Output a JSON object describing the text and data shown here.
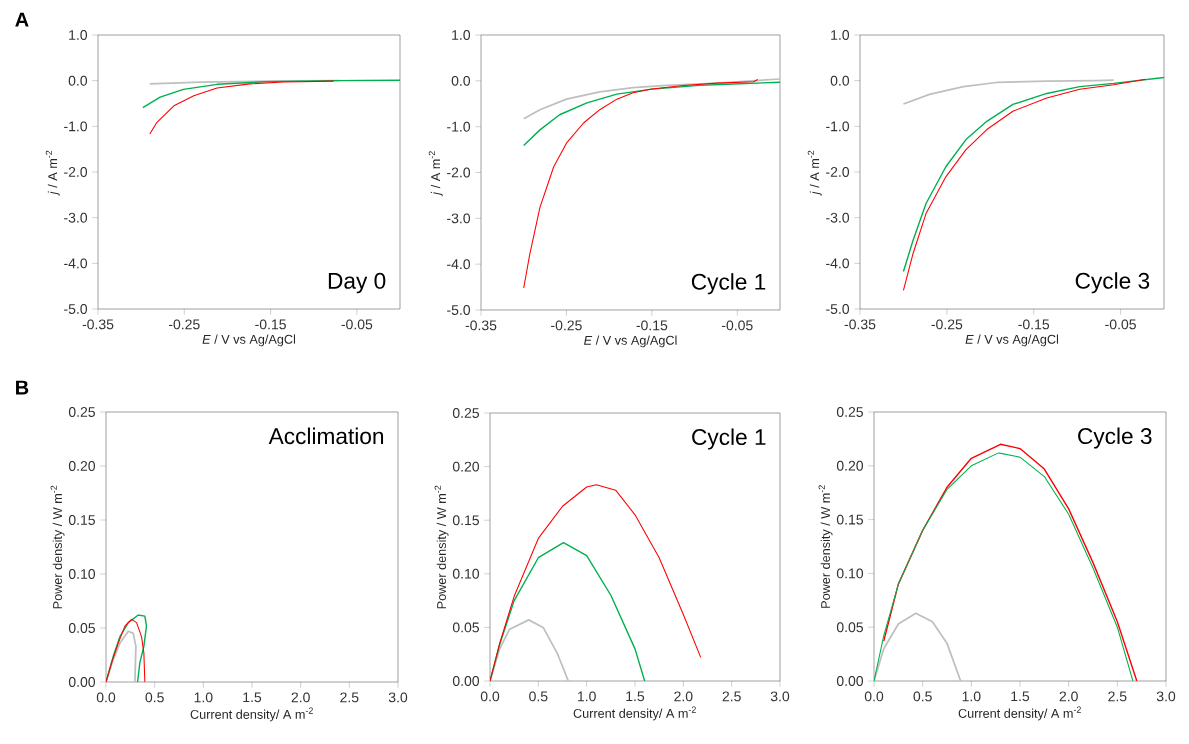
{
  "chart_data": [
    {
      "type": "line",
      "title": "Day 0",
      "annotations": [
        "A"
      ],
      "xlabel": "*E* / V vs Ag/AgCl",
      "ylabel": "*j* / A m$^{-2}$",
      "xlim": [
        -0.35,
        0
      ],
      "ylim": [
        -5,
        1
      ],
      "xticks": [
        -0.35,
        -0.25,
        -0.15,
        -0.05
      ],
      "yticks": [
        {
          "value": 1,
          "label": "1.0"
        },
        {
          "value": 0,
          "label": "0.0"
        },
        {
          "value": -1,
          "label": "-1.0"
        },
        {
          "value": -2,
          "label": "-2.0"
        },
        {
          "value": -3,
          "label": "-3.0"
        },
        {
          "value": -4,
          "label": "-4.0"
        },
        {
          "value": -5,
          "label": "-5.0"
        }
      ],
      "series": [
        {
          "color": "#bfbfbf",
          "x": [
            -0.29,
            -0.231,
            -0.154,
            -0.077,
            -0.07
          ],
          "values": [
            -0.07,
            -0.03,
            -0.01,
            0,
            0
          ]
        },
        {
          "color": "#00b050",
          "x": [
            -0.298,
            -0.278,
            -0.251,
            -0.212,
            -0.154,
            -0.077,
            0.0
          ],
          "values": [
            -0.59,
            -0.36,
            -0.19,
            -0.08,
            -0.02,
            0,
            0.01
          ]
        },
        {
          "color": "#ff0000",
          "x": [
            -0.29,
            -0.282,
            -0.262,
            -0.239,
            -0.212,
            -0.174,
            -0.135,
            -0.077
          ],
          "values": [
            -1.17,
            -0.92,
            -0.55,
            -0.33,
            -0.16,
            -0.07,
            -0.03,
            -0.01
          ]
        }
      ]
    },
    {
      "type": "line",
      "title": "Cycle 1",
      "xlabel": "*E* / V vs Ag/AgCl",
      "ylabel": "*j* / A m$^{-2}$",
      "xlim": [
        -0.35,
        0
      ],
      "ylim": [
        -5,
        1
      ],
      "xticks": [
        -0.35,
        -0.25,
        -0.15,
        -0.05
      ],
      "yticks": [
        {
          "value": 1,
          "label": "1.0"
        },
        {
          "value": 0,
          "label": "0.0"
        },
        {
          "value": -1,
          "label": "-1.0"
        },
        {
          "value": -2,
          "label": "-2.0"
        },
        {
          "value": -3,
          "label": "-3.0"
        },
        {
          "value": -4,
          "label": "-4.0"
        },
        {
          "value": -5,
          "label": "-5.0"
        }
      ],
      "series": [
        {
          "color": "#bfbfbf",
          "x": [
            -0.3,
            -0.281,
            -0.25,
            -0.211,
            -0.172,
            -0.133,
            -0.074,
            0.0
          ],
          "values": [
            -0.83,
            -0.63,
            -0.4,
            -0.24,
            -0.15,
            -0.1,
            -0.05,
            0.04
          ]
        },
        {
          "color": "#00b050",
          "x": [
            -0.3,
            -0.281,
            -0.258,
            -0.226,
            -0.191,
            -0.15,
            -0.094,
            -0.055,
            0.0
          ],
          "values": [
            -1.41,
            -1.07,
            -0.74,
            -0.48,
            -0.29,
            -0.18,
            -0.1,
            -0.07,
            -0.03
          ]
        },
        {
          "color": "#ff0000",
          "x": [
            -0.3,
            -0.293,
            -0.281,
            -0.265,
            -0.25,
            -0.23,
            -0.211,
            -0.191,
            -0.172,
            -0.15,
            -0.113,
            -0.074,
            -0.031,
            -0.026
          ],
          "values": [
            -4.52,
            -3.79,
            -2.76,
            -1.88,
            -1.36,
            -0.92,
            -0.63,
            -0.4,
            -0.26,
            -0.18,
            -0.1,
            -0.05,
            -0.02,
            0.03
          ]
        }
      ]
    },
    {
      "type": "line",
      "title": "Cycle 3",
      "xlabel": "*E* / V vs Ag/AgCl",
      "ylabel": "*j* / A m$^{-2}$",
      "xlim": [
        -0.35,
        0
      ],
      "ylim": [
        -5,
        1
      ],
      "xticks": [
        -0.35,
        -0.25,
        -0.15,
        -0.05
      ],
      "yticks": [
        {
          "value": 1,
          "label": "1.0"
        },
        {
          "value": 0,
          "label": "0.0"
        },
        {
          "value": -1,
          "label": "-1.0"
        },
        {
          "value": -2,
          "label": "-2.0"
        },
        {
          "value": -3,
          "label": "-3.0"
        },
        {
          "value": -4,
          "label": "-4.0"
        },
        {
          "value": -5,
          "label": "-5.0"
        }
      ],
      "series": [
        {
          "color": "#bfbfbf",
          "x": [
            -0.3,
            -0.27,
            -0.231,
            -0.193,
            -0.135,
            -0.078,
            -0.058
          ],
          "values": [
            -0.51,
            -0.3,
            -0.13,
            -0.04,
            -0.01,
            0,
            0.01
          ]
        },
        {
          "color": "#00b050",
          "x": [
            -0.3,
            -0.289,
            -0.274,
            -0.251,
            -0.228,
            -0.204,
            -0.174,
            -0.135,
            -0.097,
            -0.058,
            0.0
          ],
          "values": [
            -4.18,
            -3.5,
            -2.69,
            -1.88,
            -1.29,
            -0.89,
            -0.52,
            -0.28,
            -0.13,
            -0.06,
            0.07
          ]
        },
        {
          "color": "#ff0000",
          "x": [
            -0.3,
            -0.289,
            -0.274,
            -0.251,
            -0.228,
            -0.204,
            -0.174,
            -0.135,
            -0.097,
            -0.058,
            -0.021
          ],
          "values": [
            -4.59,
            -3.79,
            -2.91,
            -2.1,
            -1.51,
            -1.07,
            -0.67,
            -0.38,
            -0.19,
            -0.09,
            0.03
          ]
        }
      ]
    },
    {
      "type": "line",
      "title": "Acclimation",
      "annotations": [
        "B"
      ],
      "xlabel": "Current density/ A m$^{-2}$",
      "ylabel": "Power density / W m$^{-2}$",
      "xlim": [
        0,
        3
      ],
      "ylim": [
        0,
        0.25
      ],
      "xticks": [
        {
          "value": 0,
          "label": "0.0"
        },
        {
          "value": 0.5,
          "label": "0.5"
        },
        {
          "value": 1,
          "label": "1.0"
        },
        {
          "value": 1.5,
          "label": "1.5"
        },
        {
          "value": 2,
          "label": "2.0"
        },
        {
          "value": 2.5,
          "label": "2.5"
        },
        {
          "value": 3,
          "label": "3.0"
        }
      ],
      "yticks": [
        {
          "value": 0,
          "label": "0.00"
        },
        {
          "value": 0.05,
          "label": "0.05"
        },
        {
          "value": 0.1,
          "label": "0.10"
        },
        {
          "value": 0.15,
          "label": "0.15"
        },
        {
          "value": 0.2,
          "label": "0.20"
        },
        {
          "value": 0.25,
          "label": "0.25"
        }
      ],
      "series": [
        {
          "color": "#bfbfbf",
          "x": [
            0,
            0.075,
            0.143,
            0.229,
            0.28,
            0.307,
            0.297
          ],
          "values": [
            0,
            0.021,
            0.036,
            0.047,
            0.045,
            0.033,
            0
          ]
        },
        {
          "color": "#00b050",
          "x": [
            0,
            0.075,
            0.143,
            0.229,
            0.331,
            0.399,
            0.416,
            0.389,
            0.348,
            0.324
          ],
          "values": [
            0,
            0.024,
            0.042,
            0.055,
            0.062,
            0.061,
            0.052,
            0.033,
            0.018,
            0
          ]
        },
        {
          "color": "#ff0000",
          "x": [
            0,
            0.058,
            0.126,
            0.195,
            0.263,
            0.314,
            0.365,
            0.389,
            0.399
          ],
          "values": [
            0,
            0.018,
            0.036,
            0.052,
            0.058,
            0.055,
            0.042,
            0.027,
            0
          ]
        }
      ]
    },
    {
      "type": "line",
      "title": "Cycle 1",
      "xlabel": "Current density/ A m$^{-2}$",
      "ylabel": "Power density / W m$^{-2}$",
      "xlim": [
        0,
        3
      ],
      "ylim": [
        0,
        0.25
      ],
      "xticks": [
        {
          "value": 0,
          "label": "0.0"
        },
        {
          "value": 0.5,
          "label": "0.5"
        },
        {
          "value": 1,
          "label": "1.0"
        },
        {
          "value": 1.5,
          "label": "1.5"
        },
        {
          "value": 2,
          "label": "2.0"
        },
        {
          "value": 2.5,
          "label": "2.5"
        },
        {
          "value": 3,
          "label": "3.0"
        }
      ],
      "yticks": [
        {
          "value": 0,
          "label": "0.00"
        },
        {
          "value": 0.05,
          "label": "0.05"
        },
        {
          "value": 0.1,
          "label": "0.10"
        },
        {
          "value": 0.15,
          "label": "0.15"
        },
        {
          "value": 0.2,
          "label": "0.20"
        },
        {
          "value": 0.25,
          "label": "0.25"
        }
      ],
      "series": [
        {
          "color": "#bfbfbf",
          "x": [
            0,
            0.1,
            0.2,
            0.4,
            0.55,
            0.7,
            0.81
          ],
          "values": [
            0,
            0.03,
            0.048,
            0.057,
            0.05,
            0.025,
            0
          ]
        },
        {
          "color": "#00b050",
          "x": [
            0,
            0.1,
            0.25,
            0.5,
            0.76,
            1.0,
            1.25,
            1.5,
            1.6
          ],
          "values": [
            0,
            0.034,
            0.075,
            0.115,
            0.129,
            0.117,
            0.08,
            0.03,
            0
          ]
        },
        {
          "color": "#ff0000",
          "x": [
            0,
            0.1,
            0.25,
            0.5,
            0.75,
            1.0,
            1.1,
            1.3,
            1.5,
            1.75,
            2.0,
            2.18
          ],
          "values": [
            0,
            0.035,
            0.079,
            0.133,
            0.163,
            0.181,
            0.183,
            0.178,
            0.155,
            0.115,
            0.062,
            0.022
          ]
        }
      ]
    },
    {
      "type": "line",
      "title": "Cycle 3",
      "xlabel": "Current density/ A m$^{-2}$",
      "ylabel": "Power density / W m$^{-2}$",
      "xlim": [
        0,
        3
      ],
      "ylim": [
        0,
        0.25
      ],
      "xticks": [
        {
          "value": 0,
          "label": "0.0"
        },
        {
          "value": 0.5,
          "label": "0.5"
        },
        {
          "value": 1,
          "label": "1.0"
        },
        {
          "value": 1.5,
          "label": "1.5"
        },
        {
          "value": 2,
          "label": "2.0"
        },
        {
          "value": 2.5,
          "label": "2.5"
        },
        {
          "value": 3,
          "label": "3.0"
        }
      ],
      "yticks": [
        {
          "value": 0,
          "label": "0.00"
        },
        {
          "value": 0.05,
          "label": "0.05"
        },
        {
          "value": 0.1,
          "label": "0.10"
        },
        {
          "value": 0.15,
          "label": "0.15"
        },
        {
          "value": 0.2,
          "label": "0.20"
        },
        {
          "value": 0.25,
          "label": "0.25"
        }
      ],
      "series": [
        {
          "color": "#bfbfbf",
          "x": [
            0,
            0.1,
            0.25,
            0.43,
            0.6,
            0.75,
            0.89
          ],
          "values": [
            0,
            0.03,
            0.053,
            0.063,
            0.055,
            0.035,
            0
          ]
        },
        {
          "color": "#ff0000",
          "x": [
            0.1,
            0.25,
            0.5,
            0.75,
            1.0,
            1.3,
            1.5,
            1.75,
            2.0,
            2.25,
            2.5,
            2.7
          ],
          "values": [
            0.037,
            0.09,
            0.14,
            0.18,
            0.207,
            0.22,
            0.216,
            0.197,
            0.16,
            0.11,
            0.055,
            0
          ]
        },
        {
          "color": "#00b050",
          "x": [
            0,
            0.1,
            0.25,
            0.5,
            0.75,
            1.0,
            1.28,
            1.5,
            1.75,
            2.0,
            2.25,
            2.5,
            2.66
          ],
          "values": [
            0,
            0.042,
            0.09,
            0.14,
            0.178,
            0.2,
            0.212,
            0.208,
            0.19,
            0.155,
            0.105,
            0.05,
            0
          ]
        }
      ]
    }
  ]
}
